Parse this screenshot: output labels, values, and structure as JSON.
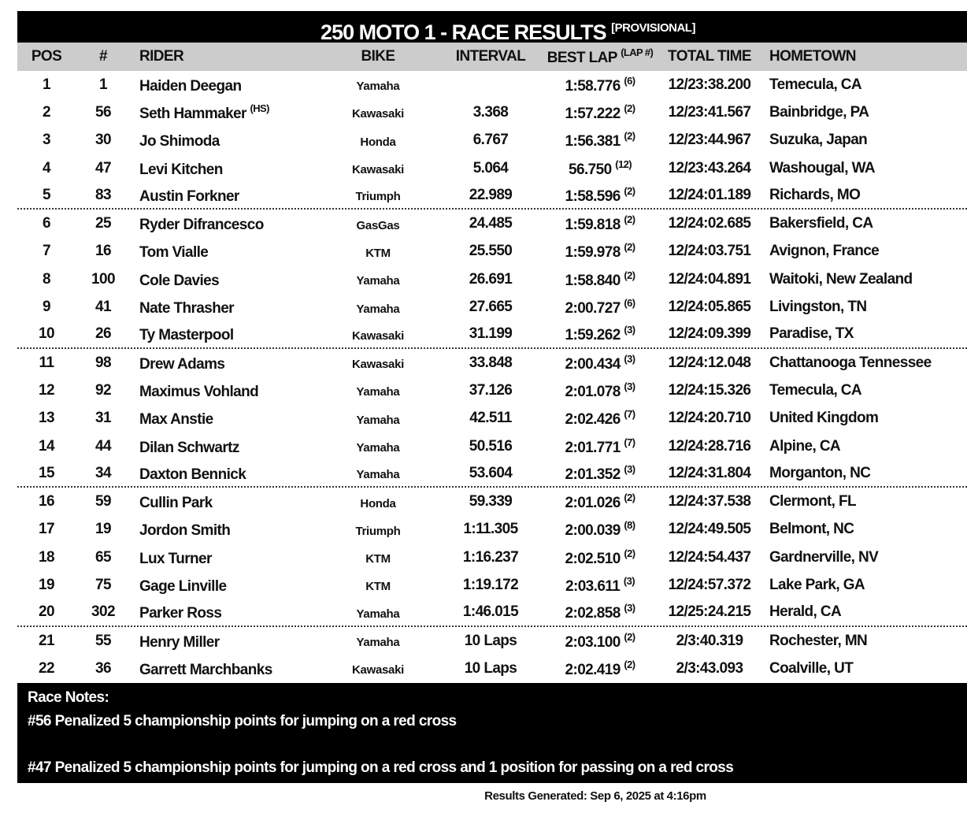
{
  "title": {
    "main": "250 MOTO 1 - RACE RESULTS",
    "tag": "[PROVISIONAL]"
  },
  "headers": {
    "pos": "POS",
    "num": "#",
    "rider": "RIDER",
    "bike": "BIKE",
    "interval": "INTERVAL",
    "best_lap": "BEST LAP",
    "best_lap_sup": "(LAP #)",
    "total_time": "TOTAL TIME",
    "hometown": "HOMETOWN"
  },
  "rows": [
    {
      "pos": "1",
      "num": "1",
      "rider": "Haiden Deegan",
      "rider_sup": "",
      "bike": "Yamaha",
      "interval": "",
      "best": "1:58.776",
      "lap": "(6)",
      "total": "12/23:38.200",
      "home": "Temecula, CA"
    },
    {
      "pos": "2",
      "num": "56",
      "rider": "Seth Hammaker",
      "rider_sup": "(HS)",
      "bike": "Kawasaki",
      "interval": "3.368",
      "best": "1:57.222",
      "lap": "(2)",
      "total": "12/23:41.567",
      "home": "Bainbridge, PA"
    },
    {
      "pos": "3",
      "num": "30",
      "rider": "Jo Shimoda",
      "rider_sup": "",
      "bike": "Honda",
      "interval": "6.767",
      "best": "1:56.381",
      "lap": "(2)",
      "total": "12/23:44.967",
      "home": "Suzuka, Japan"
    },
    {
      "pos": "4",
      "num": "47",
      "rider": "Levi Kitchen",
      "rider_sup": "",
      "bike": "Kawasaki",
      "interval": "5.064",
      "best": "56.750",
      "lap": "(12)",
      "total": "12/23:43.264",
      "home": "Washougal, WA"
    },
    {
      "pos": "5",
      "num": "83",
      "rider": "Austin Forkner",
      "rider_sup": "",
      "bike": "Triumph",
      "interval": "22.989",
      "best": "1:58.596",
      "lap": "(2)",
      "total": "12/24:01.189",
      "home": "Richards, MO"
    },
    {
      "pos": "6",
      "num": "25",
      "rider": "Ryder Difrancesco",
      "rider_sup": "",
      "bike": "GasGas",
      "interval": "24.485",
      "best": "1:59.818",
      "lap": "(2)",
      "total": "12/24:02.685",
      "home": "Bakersfield, CA"
    },
    {
      "pos": "7",
      "num": "16",
      "rider": "Tom Vialle",
      "rider_sup": "",
      "bike": "KTM",
      "interval": "25.550",
      "best": "1:59.978",
      "lap": "(2)",
      "total": "12/24:03.751",
      "home": "Avignon, France"
    },
    {
      "pos": "8",
      "num": "100",
      "rider": "Cole Davies",
      "rider_sup": "",
      "bike": "Yamaha",
      "interval": "26.691",
      "best": "1:58.840",
      "lap": "(2)",
      "total": "12/24:04.891",
      "home": "Waitoki, New Zealand"
    },
    {
      "pos": "9",
      "num": "41",
      "rider": "Nate Thrasher",
      "rider_sup": "",
      "bike": "Yamaha",
      "interval": "27.665",
      "best": "2:00.727",
      "lap": "(6)",
      "total": "12/24:05.865",
      "home": "Livingston, TN"
    },
    {
      "pos": "10",
      "num": "26",
      "rider": "Ty Masterpool",
      "rider_sup": "",
      "bike": "Kawasaki",
      "interval": "31.199",
      "best": "1:59.262",
      "lap": "(3)",
      "total": "12/24:09.399",
      "home": "Paradise, TX"
    },
    {
      "pos": "11",
      "num": "98",
      "rider": "Drew Adams",
      "rider_sup": "",
      "bike": "Kawasaki",
      "interval": "33.848",
      "best": "2:00.434",
      "lap": "(3)",
      "total": "12/24:12.048",
      "home": "Chattanooga Tennessee"
    },
    {
      "pos": "12",
      "num": "92",
      "rider": "Maximus Vohland",
      "rider_sup": "",
      "bike": "Yamaha",
      "interval": "37.126",
      "best": "2:01.078",
      "lap": "(3)",
      "total": "12/24:15.326",
      "home": "Temecula, CA"
    },
    {
      "pos": "13",
      "num": "31",
      "rider": "Max Anstie",
      "rider_sup": "",
      "bike": "Yamaha",
      "interval": "42.511",
      "best": "2:02.426",
      "lap": "(7)",
      "total": "12/24:20.710",
      "home": "United Kingdom"
    },
    {
      "pos": "14",
      "num": "44",
      "rider": "Dilan Schwartz",
      "rider_sup": "",
      "bike": "Yamaha",
      "interval": "50.516",
      "best": "2:01.771",
      "lap": "(7)",
      "total": "12/24:28.716",
      "home": "Alpine, CA"
    },
    {
      "pos": "15",
      "num": "34",
      "rider": "Daxton Bennick",
      "rider_sup": "",
      "bike": "Yamaha",
      "interval": "53.604",
      "best": "2:01.352",
      "lap": "(3)",
      "total": "12/24:31.804",
      "home": "Morganton, NC"
    },
    {
      "pos": "16",
      "num": "59",
      "rider": "Cullin Park",
      "rider_sup": "",
      "bike": "Honda",
      "interval": "59.339",
      "best": "2:01.026",
      "lap": "(2)",
      "total": "12/24:37.538",
      "home": "Clermont, FL"
    },
    {
      "pos": "17",
      "num": "19",
      "rider": "Jordon Smith",
      "rider_sup": "",
      "bike": "Triumph",
      "interval": "1:11.305",
      "best": "2:00.039",
      "lap": "(8)",
      "total": "12/24:49.505",
      "home": "Belmont, NC"
    },
    {
      "pos": "18",
      "num": "65",
      "rider": "Lux Turner",
      "rider_sup": "",
      "bike": "KTM",
      "interval": "1:16.237",
      "best": "2:02.510",
      "lap": "(2)",
      "total": "12/24:54.437",
      "home": "Gardnerville, NV"
    },
    {
      "pos": "19",
      "num": "75",
      "rider": "Gage Linville",
      "rider_sup": "",
      "bike": "KTM",
      "interval": "1:19.172",
      "best": "2:03.611",
      "lap": "(3)",
      "total": "12/24:57.372",
      "home": "Lake Park, GA"
    },
    {
      "pos": "20",
      "num": "302",
      "rider": "Parker Ross",
      "rider_sup": "",
      "bike": "Yamaha",
      "interval": "1:46.015",
      "best": "2:02.858",
      "lap": "(3)",
      "total": "12/25:24.215",
      "home": "Herald, CA"
    },
    {
      "pos": "21",
      "num": "55",
      "rider": "Henry Miller",
      "rider_sup": "",
      "bike": "Yamaha",
      "interval": "10 Laps",
      "best": "2:03.100",
      "lap": "(2)",
      "total": "2/3:40.319",
      "home": "Rochester, MN"
    },
    {
      "pos": "22",
      "num": "36",
      "rider": "Garrett Marchbanks",
      "rider_sup": "",
      "bike": "Kawasaki",
      "interval": "10 Laps",
      "best": "2:02.419",
      "lap": "(2)",
      "total": "2/3:43.093",
      "home": "Coalville, UT"
    }
  ],
  "notes": {
    "heading": "Race Notes:",
    "items": [
      "#56 Penalized 5 championship points for jumping on a red cross",
      "#47 Penalized 5 championship points for jumping on a red cross and 1 position for passing on a red cross"
    ]
  },
  "footer": "Results Generated: Sep 6, 2025 at 4:16pm"
}
